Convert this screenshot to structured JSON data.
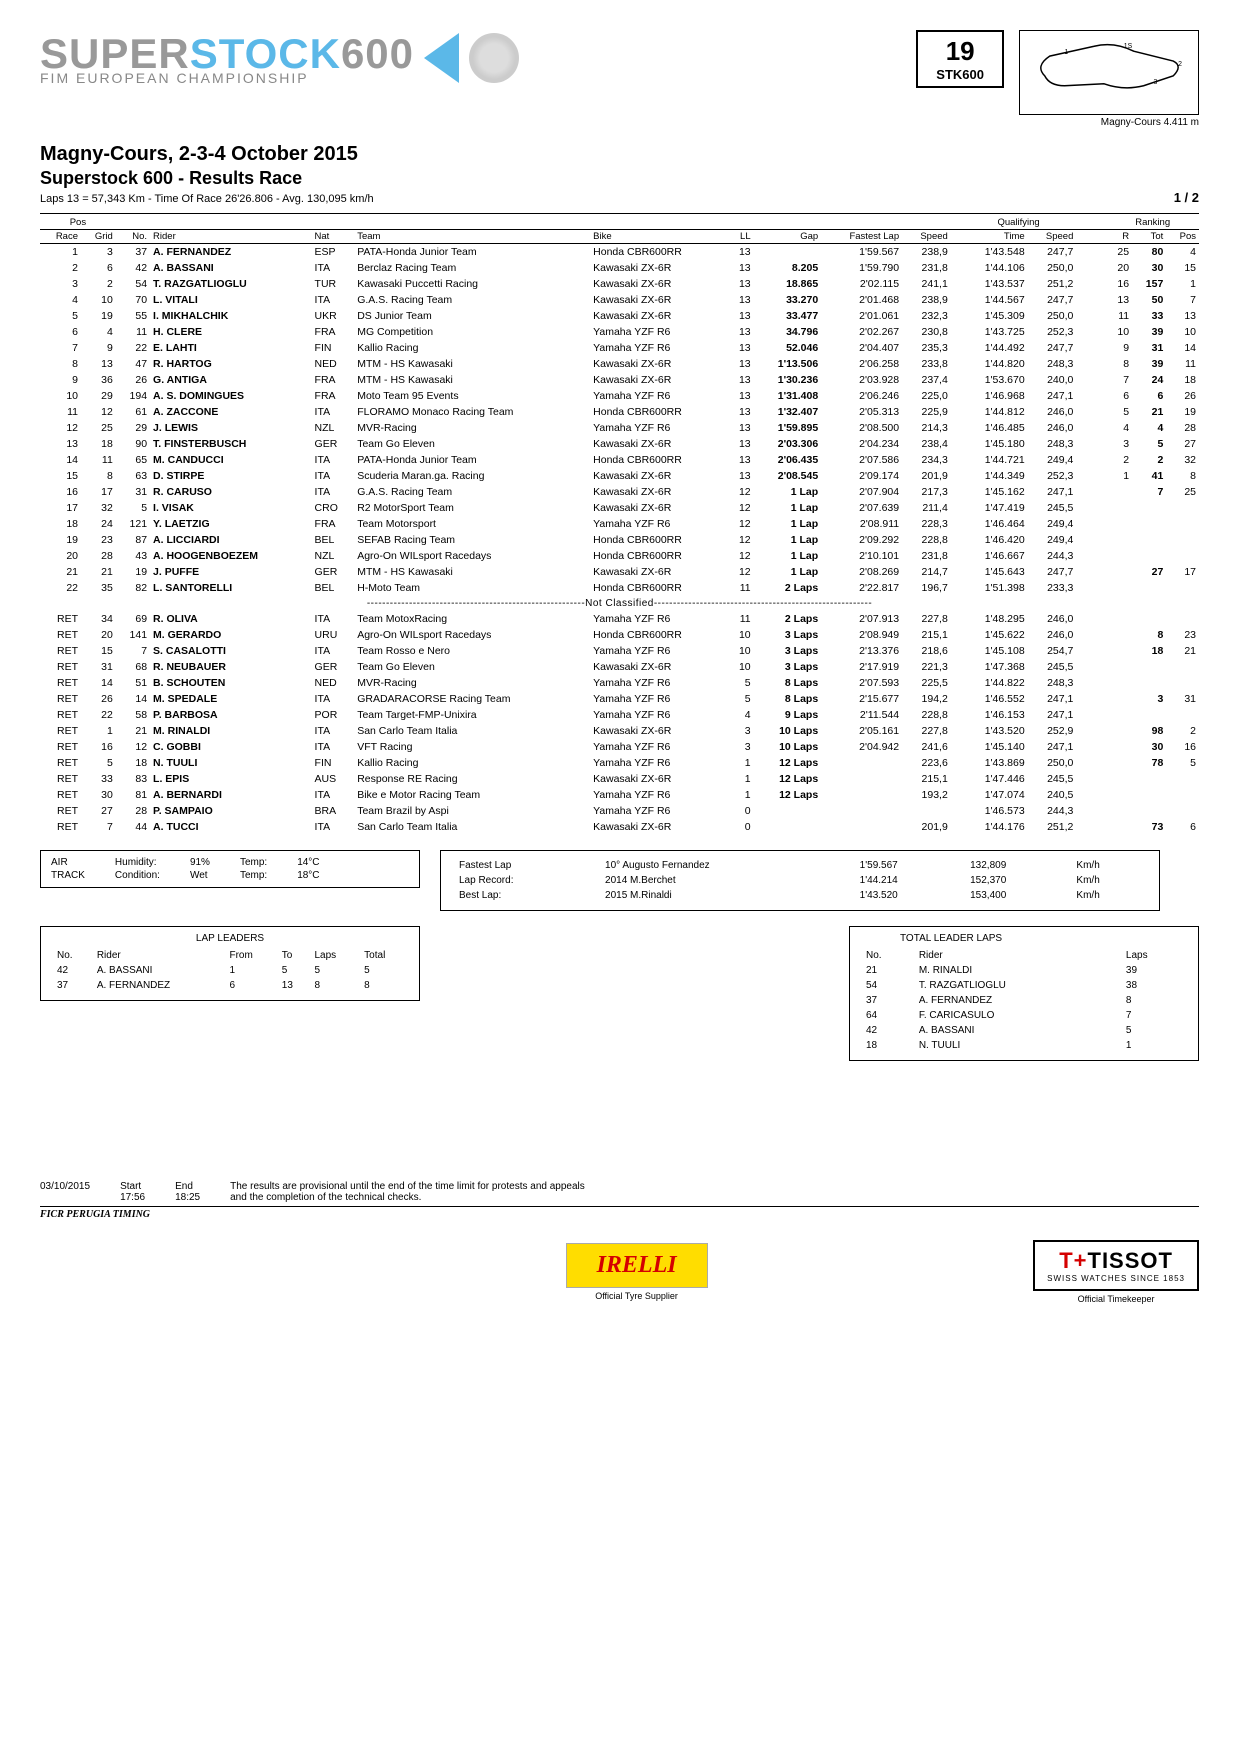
{
  "header": {
    "logo_line1_a": "SUPER",
    "logo_line1_b": "STOCK",
    "logo_line1_c": "600",
    "logo_line2": "FIM EUROPEAN CHAMPIONSHIP",
    "round_number": "19",
    "round_label": "STK600",
    "track_label": "Magny-Cours 4.411 m",
    "event_location": "Magny-Cours, 2-3-4 October 2015",
    "event_title": "Superstock 600 - Results Race",
    "laps_info": "Laps 13 = 57,343 Km  -  Time Of Race   26'26.806  -  Avg. 130,095 km/h",
    "page": "1 / 2"
  },
  "columns": {
    "pos_group": "Pos",
    "race": "Race",
    "grid": "Grid",
    "no": "No.",
    "rider": "Rider",
    "nat": "Nat",
    "team": "Team",
    "bike": "Bike",
    "ll": "LL",
    "gap": "Gap",
    "fastest": "Fastest Lap",
    "speed": "Speed",
    "qual_group": "Qualifying",
    "qtime": "Time",
    "qspeed": "Speed",
    "rank_group": "Ranking",
    "r": "R",
    "tot": "Tot",
    "rpos": "Pos"
  },
  "rows": [
    {
      "race": "1",
      "grid": "3",
      "no": "37",
      "rider": "A.  FERNANDEZ",
      "nat": "ESP",
      "team": "PATA-Honda Junior Team",
      "bike": "Honda CBR600RR",
      "ll": "13",
      "gap": "",
      "fl": "1'59.567",
      "spd": "238,9",
      "qt": "1'43.548",
      "qs": "247,7",
      "r": "25",
      "tot": "80",
      "pos": "4"
    },
    {
      "race": "2",
      "grid": "6",
      "no": "42",
      "rider": "A.  BASSANI",
      "nat": "ITA",
      "team": "Berclaz Racing Team",
      "bike": "Kawasaki ZX-6R",
      "ll": "13",
      "gap": "8.205",
      "fl": "1'59.790",
      "spd": "231,8",
      "qt": "1'44.106",
      "qs": "250,0",
      "r": "20",
      "tot": "30",
      "pos": "15"
    },
    {
      "race": "3",
      "grid": "2",
      "no": "54",
      "rider": "T.  RAZGATLIOGLU",
      "nat": "TUR",
      "team": "Kawasaki Puccetti Racing",
      "bike": "Kawasaki ZX-6R",
      "ll": "13",
      "gap": "18.865",
      "fl": "2'02.115",
      "spd": "241,1",
      "qt": "1'43.537",
      "qs": "251,2",
      "r": "16",
      "tot": "157",
      "pos": "1"
    },
    {
      "race": "4",
      "grid": "10",
      "no": "70",
      "rider": "L.  VITALI",
      "nat": "ITA",
      "team": "G.A.S. Racing Team",
      "bike": "Kawasaki ZX-6R",
      "ll": "13",
      "gap": "33.270",
      "fl": "2'01.468",
      "spd": "238,9",
      "qt": "1'44.567",
      "qs": "247,7",
      "r": "13",
      "tot": "50",
      "pos": "7"
    },
    {
      "race": "5",
      "grid": "19",
      "no": "55",
      "rider": "I.  MIKHALCHIK",
      "nat": "UKR",
      "team": "DS Junior Team",
      "bike": "Kawasaki ZX-6R",
      "ll": "13",
      "gap": "33.477",
      "fl": "2'01.061",
      "spd": "232,3",
      "qt": "1'45.309",
      "qs": "250,0",
      "r": "11",
      "tot": "33",
      "pos": "13"
    },
    {
      "race": "6",
      "grid": "4",
      "no": "11",
      "rider": "H.  CLERE",
      "nat": "FRA",
      "team": "MG Competition",
      "bike": "Yamaha YZF R6",
      "ll": "13",
      "gap": "34.796",
      "fl": "2'02.267",
      "spd": "230,8",
      "qt": "1'43.725",
      "qs": "252,3",
      "r": "10",
      "tot": "39",
      "pos": "10"
    },
    {
      "race": "7",
      "grid": "9",
      "no": "22",
      "rider": "E.  LAHTI",
      "nat": "FIN",
      "team": "Kallio Racing",
      "bike": "Yamaha YZF R6",
      "ll": "13",
      "gap": "52.046",
      "fl": "2'04.407",
      "spd": "235,3",
      "qt": "1'44.492",
      "qs": "247,7",
      "r": "9",
      "tot": "31",
      "pos": "14"
    },
    {
      "race": "8",
      "grid": "13",
      "no": "47",
      "rider": "R.  HARTOG",
      "nat": "NED",
      "team": "MTM - HS Kawasaki",
      "bike": "Kawasaki ZX-6R",
      "ll": "13",
      "gap": "1'13.506",
      "fl": "2'06.258",
      "spd": "233,8",
      "qt": "1'44.820",
      "qs": "248,3",
      "r": "8",
      "tot": "39",
      "pos": "11"
    },
    {
      "race": "9",
      "grid": "36",
      "no": "26",
      "rider": "G.  ANTIGA",
      "nat": "FRA",
      "team": "MTM - HS Kawasaki",
      "bike": "Kawasaki ZX-6R",
      "ll": "13",
      "gap": "1'30.236",
      "fl": "2'03.928",
      "spd": "237,4",
      "qt": "1'53.670",
      "qs": "240,0",
      "r": "7",
      "tot": "24",
      "pos": "18"
    },
    {
      "race": "10",
      "grid": "29",
      "no": "194",
      "rider": "A.  S. DOMINGUES",
      "nat": "FRA",
      "team": "Moto Team 95 Events",
      "bike": "Yamaha YZF R6",
      "ll": "13",
      "gap": "1'31.408",
      "fl": "2'06.246",
      "spd": "225,0",
      "qt": "1'46.968",
      "qs": "247,1",
      "r": "6",
      "tot": "6",
      "pos": "26"
    },
    {
      "race": "11",
      "grid": "12",
      "no": "61",
      "rider": "A.  ZACCONE",
      "nat": "ITA",
      "team": "FLORAMO Monaco Racing Team",
      "bike": "Honda CBR600RR",
      "ll": "13",
      "gap": "1'32.407",
      "fl": "2'05.313",
      "spd": "225,9",
      "qt": "1'44.812",
      "qs": "246,0",
      "r": "5",
      "tot": "21",
      "pos": "19"
    },
    {
      "race": "12",
      "grid": "25",
      "no": "29",
      "rider": "J.  LEWIS",
      "nat": "NZL",
      "team": "MVR-Racing",
      "bike": "Yamaha YZF R6",
      "ll": "13",
      "gap": "1'59.895",
      "fl": "2'08.500",
      "spd": "214,3",
      "qt": "1'46.485",
      "qs": "246,0",
      "r": "4",
      "tot": "4",
      "pos": "28"
    },
    {
      "race": "13",
      "grid": "18",
      "no": "90",
      "rider": "T.  FINSTERBUSCH",
      "nat": "GER",
      "team": "Team Go Eleven",
      "bike": "Kawasaki ZX-6R",
      "ll": "13",
      "gap": "2'03.306",
      "fl": "2'04.234",
      "spd": "238,4",
      "qt": "1'45.180",
      "qs": "248,3",
      "r": "3",
      "tot": "5",
      "pos": "27"
    },
    {
      "race": "14",
      "grid": "11",
      "no": "65",
      "rider": "M.  CANDUCCI",
      "nat": "ITA",
      "team": "PATA-Honda Junior Team",
      "bike": "Honda CBR600RR",
      "ll": "13",
      "gap": "2'06.435",
      "fl": "2'07.586",
      "spd": "234,3",
      "qt": "1'44.721",
      "qs": "249,4",
      "r": "2",
      "tot": "2",
      "pos": "32"
    },
    {
      "race": "15",
      "grid": "8",
      "no": "63",
      "rider": "D.  STIRPE",
      "nat": "ITA",
      "team": "Scuderia Maran.ga. Racing",
      "bike": "Kawasaki ZX-6R",
      "ll": "13",
      "gap": "2'08.545",
      "fl": "2'09.174",
      "spd": "201,9",
      "qt": "1'44.349",
      "qs": "252,3",
      "r": "1",
      "tot": "41",
      "pos": "8"
    },
    {
      "race": "16",
      "grid": "17",
      "no": "31",
      "rider": "R.  CARUSO",
      "nat": "ITA",
      "team": "G.A.S. Racing Team",
      "bike": "Kawasaki ZX-6R",
      "ll": "12",
      "gap": "1  Lap",
      "fl": "2'07.904",
      "spd": "217,3",
      "qt": "1'45.162",
      "qs": "247,1",
      "r": "",
      "tot": "7",
      "pos": "25"
    },
    {
      "race": "17",
      "grid": "32",
      "no": "5",
      "rider": "I.  VISAK",
      "nat": "CRO",
      "team": "R2 MotorSport Team",
      "bike": "Kawasaki ZX-6R",
      "ll": "12",
      "gap": "1  Lap",
      "fl": "2'07.639",
      "spd": "211,4",
      "qt": "1'47.419",
      "qs": "245,5",
      "r": "",
      "tot": "",
      "pos": ""
    },
    {
      "race": "18",
      "grid": "24",
      "no": "121",
      "rider": "Y.  LAETZIG",
      "nat": "FRA",
      "team": "Team Motorsport",
      "bike": "Yamaha YZF R6",
      "ll": "12",
      "gap": "1  Lap",
      "fl": "2'08.911",
      "spd": "228,3",
      "qt": "1'46.464",
      "qs": "249,4",
      "r": "",
      "tot": "",
      "pos": ""
    },
    {
      "race": "19",
      "grid": "23",
      "no": "87",
      "rider": "A.  LICCIARDI",
      "nat": "BEL",
      "team": "SEFAB Racing Team",
      "bike": "Honda CBR600RR",
      "ll": "12",
      "gap": "1  Lap",
      "fl": "2'09.292",
      "spd": "228,8",
      "qt": "1'46.420",
      "qs": "249,4",
      "r": "",
      "tot": "",
      "pos": ""
    },
    {
      "race": "20",
      "grid": "28",
      "no": "43",
      "rider": "A.  HOOGENBOEZEM",
      "nat": "NZL",
      "team": "Agro-On WILsport Racedays",
      "bike": "Honda CBR600RR",
      "ll": "12",
      "gap": "1  Lap",
      "fl": "2'10.101",
      "spd": "231,8",
      "qt": "1'46.667",
      "qs": "244,3",
      "r": "",
      "tot": "",
      "pos": ""
    },
    {
      "race": "21",
      "grid": "21",
      "no": "19",
      "rider": "J.  PUFFE",
      "nat": "GER",
      "team": "MTM - HS Kawasaki",
      "bike": "Kawasaki ZX-6R",
      "ll": "12",
      "gap": "1  Lap",
      "fl": "2'08.269",
      "spd": "214,7",
      "qt": "1'45.643",
      "qs": "247,7",
      "r": "",
      "tot": "27",
      "pos": "17"
    },
    {
      "race": "22",
      "grid": "35",
      "no": "82",
      "rider": "L.  SANTORELLI",
      "nat": "BEL",
      "team": "H-Moto Team",
      "bike": "Honda CBR600RR",
      "ll": "11",
      "gap": "2  Laps",
      "fl": "2'22.817",
      "spd": "196,7",
      "qt": "1'51.398",
      "qs": "233,3",
      "r": "",
      "tot": "",
      "pos": ""
    }
  ],
  "not_classified_label": "---------------------------------------------------------Not Classified---------------------------------------------------------",
  "nc_rows": [
    {
      "race": "RET",
      "grid": "34",
      "no": "69",
      "rider": "R.  OLIVA",
      "nat": "ITA",
      "team": "Team MotoxRacing",
      "bike": "Yamaha YZF R6",
      "ll": "11",
      "gap": "2  Laps",
      "fl": "2'07.913",
      "spd": "227,8",
      "qt": "1'48.295",
      "qs": "246,0",
      "r": "",
      "tot": "",
      "pos": ""
    },
    {
      "race": "RET",
      "grid": "20",
      "no": "141",
      "rider": "M.  GERARDO",
      "nat": "URU",
      "team": "Agro-On WILsport Racedays",
      "bike": "Honda CBR600RR",
      "ll": "10",
      "gap": "3  Laps",
      "fl": "2'08.949",
      "spd": "215,1",
      "qt": "1'45.622",
      "qs": "246,0",
      "r": "",
      "tot": "8",
      "pos": "23"
    },
    {
      "race": "RET",
      "grid": "15",
      "no": "7",
      "rider": "S.  CASALOTTI",
      "nat": "ITA",
      "team": "Team Rosso e Nero",
      "bike": "Yamaha YZF R6",
      "ll": "10",
      "gap": "3  Laps",
      "fl": "2'13.376",
      "spd": "218,6",
      "qt": "1'45.108",
      "qs": "254,7",
      "r": "",
      "tot": "18",
      "pos": "21"
    },
    {
      "race": "RET",
      "grid": "31",
      "no": "68",
      "rider": "R.  NEUBAUER",
      "nat": "GER",
      "team": "Team Go Eleven",
      "bike": "Kawasaki ZX-6R",
      "ll": "10",
      "gap": "3  Laps",
      "fl": "2'17.919",
      "spd": "221,3",
      "qt": "1'47.368",
      "qs": "245,5",
      "r": "",
      "tot": "",
      "pos": ""
    },
    {
      "race": "RET",
      "grid": "14",
      "no": "51",
      "rider": "B.  SCHOUTEN",
      "nat": "NED",
      "team": "MVR-Racing",
      "bike": "Yamaha YZF R6",
      "ll": "5",
      "gap": "8  Laps",
      "fl": "2'07.593",
      "spd": "225,5",
      "qt": "1'44.822",
      "qs": "248,3",
      "r": "",
      "tot": "",
      "pos": ""
    },
    {
      "race": "RET",
      "grid": "26",
      "no": "14",
      "rider": "M.  SPEDALE",
      "nat": "ITA",
      "team": "GRADARACORSE Racing Team",
      "bike": "Yamaha YZF R6",
      "ll": "5",
      "gap": "8  Laps",
      "fl": "2'15.677",
      "spd": "194,2",
      "qt": "1'46.552",
      "qs": "247,1",
      "r": "",
      "tot": "3",
      "pos": "31"
    },
    {
      "race": "RET",
      "grid": "22",
      "no": "58",
      "rider": "P.  BARBOSA",
      "nat": "POR",
      "team": "Team Target-FMP-Unixira",
      "bike": "Yamaha YZF R6",
      "ll": "4",
      "gap": "9  Laps",
      "fl": "2'11.544",
      "spd": "228,8",
      "qt": "1'46.153",
      "qs": "247,1",
      "r": "",
      "tot": "",
      "pos": ""
    },
    {
      "race": "RET",
      "grid": "1",
      "no": "21",
      "rider": "M.  RINALDI",
      "nat": "ITA",
      "team": "San Carlo Team Italia",
      "bike": "Kawasaki ZX-6R",
      "ll": "3",
      "gap": "10  Laps",
      "fl": "2'05.161",
      "spd": "227,8",
      "qt": "1'43.520",
      "qs": "252,9",
      "r": "",
      "tot": "98",
      "pos": "2"
    },
    {
      "race": "RET",
      "grid": "16",
      "no": "12",
      "rider": "C.  GOBBI",
      "nat": "ITA",
      "team": "VFT Racing",
      "bike": "Yamaha YZF R6",
      "ll": "3",
      "gap": "10  Laps",
      "fl": "2'04.942",
      "spd": "241,6",
      "qt": "1'45.140",
      "qs": "247,1",
      "r": "",
      "tot": "30",
      "pos": "16"
    },
    {
      "race": "RET",
      "grid": "5",
      "no": "18",
      "rider": "N.  TUULI",
      "nat": "FIN",
      "team": "Kallio Racing",
      "bike": "Yamaha YZF R6",
      "ll": "1",
      "gap": "12  Laps",
      "fl": "",
      "spd": "223,6",
      "qt": "1'43.869",
      "qs": "250,0",
      "r": "",
      "tot": "78",
      "pos": "5"
    },
    {
      "race": "RET",
      "grid": "33",
      "no": "83",
      "rider": "L.  EPIS",
      "nat": "AUS",
      "team": "Response RE Racing",
      "bike": "Kawasaki ZX-6R",
      "ll": "1",
      "gap": "12  Laps",
      "fl": "",
      "spd": "215,1",
      "qt": "1'47.446",
      "qs": "245,5",
      "r": "",
      "tot": "",
      "pos": ""
    },
    {
      "race": "RET",
      "grid": "30",
      "no": "81",
      "rider": "A.  BERNARDI",
      "nat": "ITA",
      "team": "Bike e Motor Racing Team",
      "bike": "Yamaha YZF R6",
      "ll": "1",
      "gap": "12  Laps",
      "fl": "",
      "spd": "193,2",
      "qt": "1'47.074",
      "qs": "240,5",
      "r": "",
      "tot": "",
      "pos": ""
    },
    {
      "race": "RET",
      "grid": "27",
      "no": "28",
      "rider": "P.  SAMPAIO",
      "nat": "BRA",
      "team": "Team Brazil by Aspi",
      "bike": "Yamaha YZF R6",
      "ll": "0",
      "gap": "",
      "fl": "",
      "spd": "",
      "qt": "1'46.573",
      "qs": "244,3",
      "r": "",
      "tot": "",
      "pos": ""
    },
    {
      "race": "RET",
      "grid": "7",
      "no": "44",
      "rider": "A.  TUCCI",
      "nat": "ITA",
      "team": "San Carlo Team Italia",
      "bike": "Kawasaki ZX-6R",
      "ll": "0",
      "gap": "",
      "fl": "",
      "spd": "201,9",
      "qt": "1'44.176",
      "qs": "251,2",
      "r": "",
      "tot": "73",
      "pos": "6"
    }
  ],
  "conditions": {
    "air_lbl": "AIR",
    "track_lbl": "TRACK",
    "humidity_lbl": "Humidity:",
    "humidity": "91%",
    "condition_lbl": "Condition:",
    "condition": "Wet",
    "temp_lbl": "Temp:",
    "air_temp": "14°C",
    "track_temp": "18°C"
  },
  "records": {
    "fl_lbl": "Fastest Lap",
    "fl_who": "10° Augusto Fernandez",
    "fl_time": "1'59.567",
    "fl_spd": "132,809",
    "fl_unit": "Km/h",
    "lr_lbl": "Lap Record:",
    "lr_who": "2014 M.Berchet",
    "lr_time": "1'44.214",
    "lr_spd": "152,370",
    "lr_unit": "Km/h",
    "bl_lbl": "Best Lap:",
    "bl_who": "2015 M.Rinaldi",
    "bl_time": "1'43.520",
    "bl_spd": "153,400",
    "bl_unit": "Km/h"
  },
  "lap_leaders": {
    "title": "LAP LEADERS",
    "cols": {
      "no": "No.",
      "rider": "Rider",
      "from": "From",
      "to": "To",
      "laps": "Laps",
      "total": "Total"
    },
    "rows": [
      {
        "no": "42",
        "rider": "A.  BASSANI",
        "from": "1",
        "to": "5",
        "laps": "5",
        "total": "5"
      },
      {
        "no": "37",
        "rider": "A.  FERNANDEZ",
        "from": "6",
        "to": "13",
        "laps": "8",
        "total": "8"
      }
    ]
  },
  "total_leaders": {
    "title": "TOTAL LEADER LAPS",
    "cols": {
      "no": "No.",
      "rider": "Rider",
      "laps": "Laps"
    },
    "rows": [
      {
        "no": "21",
        "rider": "M.  RINALDI",
        "laps": "39"
      },
      {
        "no": "54",
        "rider": "T.  RAZGATLIOGLU",
        "laps": "38"
      },
      {
        "no": "37",
        "rider": "A.  FERNANDEZ",
        "laps": "8"
      },
      {
        "no": "64",
        "rider": "F.  CARICASULO",
        "laps": "7"
      },
      {
        "no": "42",
        "rider": "A.  BASSANI",
        "laps": "5"
      },
      {
        "no": "18",
        "rider": "N.  TUULI",
        "laps": "1"
      }
    ]
  },
  "footer": {
    "date": "03/10/2015",
    "start_lbl": "Start",
    "start": "17:56",
    "end_lbl": "End",
    "end": "18:25",
    "disclaimer1": "The results are provisional until the end of the time limit for protests and appeals",
    "disclaimer2": "and the completion of the technical checks.",
    "ficr": "FICR PERUGIA TIMING",
    "pirelli": "IRELLI",
    "pirelli_cap": "Official Tyre Supplier",
    "tissot": "TISSOT",
    "tissot_sub": "SWISS WATCHES SINCE 1853",
    "tissot_cap": "Official Timekeeper"
  }
}
